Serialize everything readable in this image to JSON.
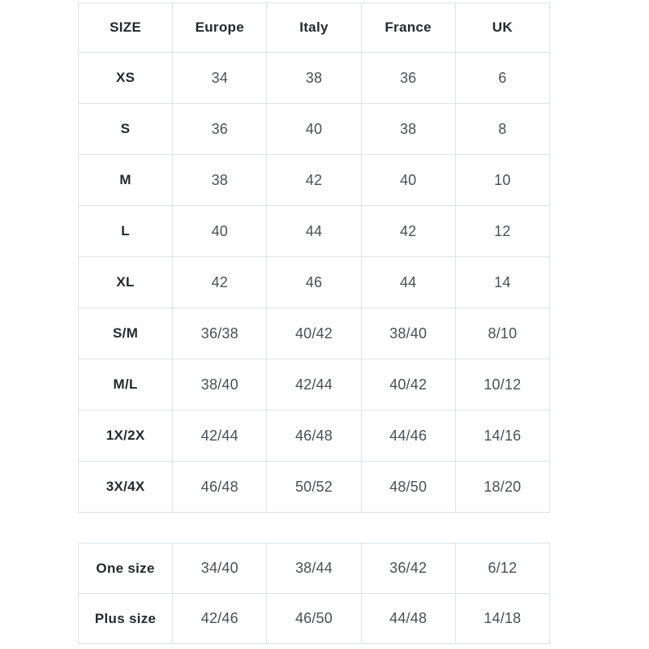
{
  "colors": {
    "border": "#dee2e6",
    "header_text": "#26282d",
    "value_text": "#4c4f55",
    "background": "#ffffff"
  },
  "main_table": {
    "headers": {
      "size": "SIZE",
      "europe": "Europe",
      "italy": "Italy",
      "france": "France",
      "uk": "UK"
    },
    "rows": [
      {
        "size": "XS",
        "europe": "34",
        "italy": "38",
        "france": "36",
        "uk": "6"
      },
      {
        "size": "S",
        "europe": "36",
        "italy": "40",
        "france": "38",
        "uk": "8"
      },
      {
        "size": "M",
        "europe": "38",
        "italy": "42",
        "france": "40",
        "uk": "10"
      },
      {
        "size": "L",
        "europe": "40",
        "italy": "44",
        "france": "42",
        "uk": "12"
      },
      {
        "size": "XL",
        "europe": "42",
        "italy": "46",
        "france": "44",
        "uk": "14"
      },
      {
        "size": "S/M",
        "europe": "36/38",
        "italy": "40/42",
        "france": "38/40",
        "uk": "8/10"
      },
      {
        "size": "M/L",
        "europe": "38/40",
        "italy": "42/44",
        "france": "40/42",
        "uk": "10/12"
      },
      {
        "size": "1X/2X",
        "europe": "42/44",
        "italy": "46/48",
        "france": "44/46",
        "uk": "14/16"
      },
      {
        "size": "3X/4X",
        "europe": "46/48",
        "italy": "50/52",
        "france": "48/50",
        "uk": "18/20"
      }
    ]
  },
  "special_table": {
    "rows": [
      {
        "size": "One size",
        "europe": "34/40",
        "italy": "38/44",
        "france": "36/42",
        "uk": "6/12"
      },
      {
        "size": "Plus size",
        "europe": "42/46",
        "italy": "46/50",
        "france": "44/48",
        "uk": "14/18"
      }
    ]
  }
}
